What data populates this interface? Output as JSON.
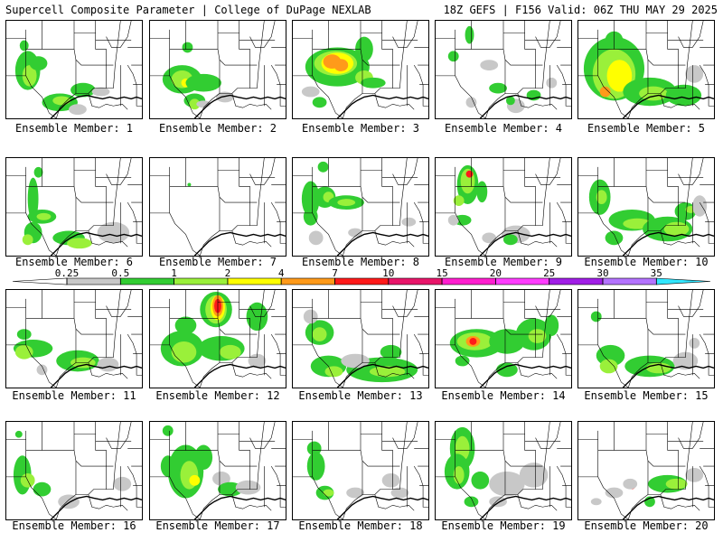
{
  "header": {
    "left": "Supercell Composite Parameter | College of DuPage NEXLAB",
    "right": "18Z GEFS | F156 Valid: 06Z THU MAY 29 2025"
  },
  "colors": {
    "lightgray": "#c8c8c8",
    "green": "#32cd32",
    "lime": "#9af03a",
    "yellow": "#ffff00",
    "orange": "#ff9a1a",
    "red": "#ff1a1a",
    "crimson": "#e8166a",
    "magenta": "#ff1ecf",
    "brightmagenta": "#ff3cff",
    "purple": "#a01ee6",
    "lavender": "#b473ff",
    "cyan": "#32e6ff"
  },
  "colorbar": {
    "ticks": [
      "0.25",
      "0.5",
      "1",
      "2",
      "4",
      "7",
      "10",
      "15",
      "20",
      "25",
      "30",
      "35"
    ],
    "colors": [
      "#c8c8c8",
      "#32cd32",
      "#9af03a",
      "#ffff00",
      "#ff9a1a",
      "#ff1a1a",
      "#e8166a",
      "#ff1ecf",
      "#ff3cff",
      "#a01ee6",
      "#b473ff",
      "#32e6ff"
    ]
  },
  "panels": [
    {
      "label": "Ensemble Member: 1",
      "blobs": [
        [
          24,
          56,
          14,
          22,
          "green"
        ],
        [
          26,
          62,
          8,
          12,
          "lime"
        ],
        [
          36,
          48,
          10,
          8,
          "green"
        ],
        [
          60,
          92,
          20,
          10,
          "green"
        ],
        [
          62,
          90,
          10,
          5,
          "lime"
        ],
        [
          80,
          100,
          10,
          6,
          "lightgray"
        ],
        [
          86,
          78,
          14,
          8,
          "green"
        ],
        [
          106,
          80,
          10,
          5,
          "lightgray"
        ],
        [
          20,
          28,
          5,
          6,
          "green"
        ]
      ]
    },
    {
      "label": "Ensemble Member: 2",
      "blobs": [
        [
          36,
          66,
          22,
          16,
          "green"
        ],
        [
          36,
          66,
          12,
          10,
          "lime"
        ],
        [
          40,
          70,
          5,
          5,
          "yellow"
        ],
        [
          60,
          70,
          20,
          10,
          "green"
        ],
        [
          50,
          90,
          12,
          8,
          "green"
        ],
        [
          50,
          94,
          6,
          6,
          "lime"
        ],
        [
          60,
          94,
          8,
          4,
          "lightgray"
        ],
        [
          84,
          86,
          10,
          6,
          "lightgray"
        ],
        [
          42,
          30,
          6,
          6,
          "green"
        ]
      ]
    },
    {
      "label": "Ensemble Member: 3",
      "blobs": [
        [
          50,
          52,
          36,
          22,
          "green"
        ],
        [
          48,
          48,
          24,
          14,
          "lime"
        ],
        [
          50,
          48,
          18,
          12,
          "yellow"
        ],
        [
          44,
          46,
          10,
          8,
          "orange"
        ],
        [
          54,
          50,
          8,
          7,
          "orange"
        ],
        [
          80,
          32,
          10,
          14,
          "green"
        ],
        [
          80,
          64,
          10,
          8,
          "lime"
        ],
        [
          90,
          70,
          14,
          6,
          "green"
        ],
        [
          20,
          80,
          10,
          6,
          "lightgray"
        ],
        [
          30,
          92,
          8,
          6,
          "green"
        ]
      ]
    },
    {
      "label": "Ensemble Member: 4",
      "blobs": [
        [
          38,
          16,
          5,
          10,
          "green"
        ],
        [
          60,
          50,
          10,
          6,
          "lightgray"
        ],
        [
          70,
          76,
          10,
          6,
          "green"
        ],
        [
          90,
          96,
          10,
          8,
          "lightgray"
        ],
        [
          84,
          90,
          5,
          5,
          "green"
        ],
        [
          110,
          84,
          8,
          6,
          "green"
        ],
        [
          130,
          70,
          6,
          6,
          "lightgray"
        ],
        [
          40,
          92,
          6,
          6,
          "lightgray"
        ],
        [
          20,
          40,
          6,
          6,
          "green"
        ]
      ]
    },
    {
      "label": "Ensemble Member: 5",
      "blobs": [
        [
          40,
          54,
          34,
          36,
          "green"
        ],
        [
          40,
          60,
          24,
          28,
          "lime"
        ],
        [
          46,
          62,
          14,
          18,
          "yellow"
        ],
        [
          30,
          80,
          6,
          6,
          "orange"
        ],
        [
          80,
          80,
          30,
          16,
          "green"
        ],
        [
          84,
          82,
          16,
          8,
          "lime"
        ],
        [
          118,
          84,
          20,
          12,
          "green"
        ],
        [
          130,
          60,
          10,
          10,
          "lightgray"
        ],
        [
          40,
          22,
          10,
          10,
          "green"
        ]
      ]
    },
    {
      "label": "Ensemble Member: 6",
      "blobs": [
        [
          30,
          46,
          6,
          24,
          "green"
        ],
        [
          40,
          66,
          16,
          8,
          "green"
        ],
        [
          42,
          66,
          8,
          4,
          "lime"
        ],
        [
          30,
          84,
          10,
          12,
          "green"
        ],
        [
          24,
          92,
          6,
          6,
          "lime"
        ],
        [
          70,
          90,
          18,
          8,
          "green"
        ],
        [
          82,
          96,
          14,
          6,
          "lime"
        ],
        [
          120,
          84,
          18,
          12,
          "lightgray"
        ],
        [
          36,
          16,
          5,
          6,
          "green"
        ]
      ]
    },
    {
      "label": "Ensemble Member: 7",
      "blobs": [
        [
          44,
          30,
          2,
          2,
          "green"
        ]
      ]
    },
    {
      "label": "Ensemble Member: 8",
      "blobs": [
        [
          20,
          46,
          10,
          20,
          "green"
        ],
        [
          36,
          44,
          12,
          12,
          "green"
        ],
        [
          40,
          44,
          6,
          6,
          "lime"
        ],
        [
          60,
          50,
          20,
          8,
          "green"
        ],
        [
          60,
          50,
          10,
          4,
          "lime"
        ],
        [
          26,
          90,
          8,
          8,
          "lightgray"
        ],
        [
          20,
          66,
          8,
          10,
          "green"
        ],
        [
          70,
          84,
          8,
          5,
          "lightgray"
        ],
        [
          130,
          72,
          8,
          5,
          "lightgray"
        ],
        [
          34,
          10,
          6,
          6,
          "green"
        ]
      ]
    },
    {
      "label": "Ensemble Member: 9",
      "blobs": [
        [
          36,
          30,
          12,
          22,
          "green"
        ],
        [
          36,
          26,
          8,
          14,
          "lime"
        ],
        [
          38,
          18,
          4,
          4,
          "red"
        ],
        [
          52,
          38,
          6,
          12,
          "green"
        ],
        [
          26,
          48,
          6,
          6,
          "lime"
        ],
        [
          30,
          70,
          10,
          6,
          "green"
        ],
        [
          20,
          70,
          6,
          6,
          "lightgray"
        ],
        [
          90,
          86,
          16,
          10,
          "lightgray"
        ],
        [
          84,
          92,
          8,
          6,
          "green"
        ],
        [
          60,
          90,
          8,
          6,
          "lightgray"
        ]
      ]
    },
    {
      "label": "Ensemble Member: 10",
      "blobs": [
        [
          24,
          44,
          12,
          20,
          "green"
        ],
        [
          26,
          44,
          6,
          8,
          "lime"
        ],
        [
          60,
          70,
          26,
          12,
          "green"
        ],
        [
          66,
          74,
          16,
          6,
          "lime"
        ],
        [
          100,
          80,
          28,
          14,
          "green"
        ],
        [
          110,
          80,
          14,
          8,
          "lime"
        ],
        [
          120,
          60,
          12,
          10,
          "green"
        ],
        [
          126,
          58,
          6,
          4,
          "lime"
        ],
        [
          136,
          54,
          8,
          12,
          "lightgray"
        ],
        [
          40,
          90,
          10,
          8,
          "green"
        ]
      ]
    },
    {
      "label": "Ensemble Member: 11",
      "blobs": [
        [
          30,
          66,
          22,
          10,
          "green"
        ],
        [
          20,
          70,
          10,
          8,
          "lime"
        ],
        [
          80,
          80,
          24,
          12,
          "green"
        ],
        [
          86,
          82,
          14,
          6,
          "lime"
        ],
        [
          114,
          84,
          12,
          8,
          "lightgray"
        ],
        [
          40,
          90,
          6,
          6,
          "lightgray"
        ],
        [
          20,
          50,
          8,
          6,
          "green"
        ]
      ]
    },
    {
      "label": "Ensemble Member: 12",
      "blobs": [
        [
          74,
          22,
          18,
          20,
          "green"
        ],
        [
          74,
          22,
          12,
          16,
          "lime"
        ],
        [
          76,
          20,
          8,
          14,
          "yellow"
        ],
        [
          76,
          18,
          6,
          12,
          "orange"
        ],
        [
          76,
          18,
          4,
          8,
          "red"
        ],
        [
          36,
          66,
          24,
          20,
          "green"
        ],
        [
          38,
          70,
          14,
          12,
          "lime"
        ],
        [
          80,
          66,
          26,
          14,
          "green"
        ],
        [
          90,
          70,
          12,
          8,
          "lime"
        ],
        [
          120,
          30,
          12,
          16,
          "green"
        ],
        [
          40,
          40,
          12,
          10,
          "green"
        ],
        [
          120,
          80,
          10,
          8,
          "lightgray"
        ]
      ]
    },
    {
      "label": "Ensemble Member: 13",
      "blobs": [
        [
          30,
          48,
          16,
          14,
          "green"
        ],
        [
          30,
          50,
          8,
          8,
          "lime"
        ],
        [
          40,
          86,
          20,
          12,
          "green"
        ],
        [
          46,
          92,
          10,
          6,
          "lime"
        ],
        [
          100,
          90,
          40,
          14,
          "green"
        ],
        [
          106,
          92,
          20,
          6,
          "lime"
        ],
        [
          70,
          80,
          16,
          8,
          "lightgray"
        ],
        [
          110,
          70,
          12,
          8,
          "green"
        ],
        [
          20,
          30,
          8,
          8,
          "lightgray"
        ]
      ]
    },
    {
      "label": "Ensemble Member: 14",
      "blobs": [
        [
          46,
          60,
          30,
          16,
          "green"
        ],
        [
          44,
          58,
          20,
          10,
          "lime"
        ],
        [
          42,
          58,
          8,
          6,
          "orange"
        ],
        [
          42,
          58,
          4,
          4,
          "red"
        ],
        [
          80,
          58,
          20,
          14,
          "green"
        ],
        [
          110,
          50,
          20,
          18,
          "green"
        ],
        [
          114,
          52,
          10,
          8,
          "lime"
        ],
        [
          130,
          40,
          8,
          12,
          "green"
        ],
        [
          80,
          90,
          12,
          8,
          "green"
        ],
        [
          30,
          80,
          8,
          6,
          "green"
        ]
      ]
    },
    {
      "label": "Ensemble Member: 15",
      "blobs": [
        [
          36,
          74,
          16,
          12,
          "green"
        ],
        [
          34,
          86,
          10,
          8,
          "lime"
        ],
        [
          80,
          86,
          28,
          12,
          "green"
        ],
        [
          90,
          88,
          14,
          6,
          "lime"
        ],
        [
          120,
          80,
          14,
          10,
          "lightgray"
        ],
        [
          20,
          30,
          6,
          6,
          "green"
        ],
        [
          130,
          60,
          6,
          6,
          "lightgray"
        ]
      ]
    },
    {
      "label": "Ensemble Member: 16",
      "blobs": [
        [
          18,
          60,
          10,
          22,
          "green"
        ],
        [
          24,
          66,
          8,
          8,
          "lime"
        ],
        [
          40,
          76,
          10,
          8,
          "green"
        ],
        [
          70,
          90,
          12,
          8,
          "lightgray"
        ],
        [
          130,
          70,
          10,
          8,
          "lightgray"
        ],
        [
          14,
          14,
          4,
          4,
          "green"
        ]
      ]
    },
    {
      "label": "Ensemble Member: 17",
      "blobs": [
        [
          40,
          56,
          20,
          30,
          "green"
        ],
        [
          44,
          60,
          10,
          16,
          "lime"
        ],
        [
          50,
          66,
          6,
          6,
          "yellow"
        ],
        [
          60,
          40,
          10,
          14,
          "green"
        ],
        [
          20,
          50,
          8,
          12,
          "green"
        ],
        [
          80,
          64,
          10,
          8,
          "lightgray"
        ],
        [
          90,
          76,
          14,
          8,
          "green"
        ],
        [
          110,
          74,
          14,
          8,
          "lightgray"
        ],
        [
          20,
          10,
          6,
          6,
          "green"
        ]
      ]
    },
    {
      "label": "Ensemble Member: 18",
      "blobs": [
        [
          26,
          50,
          10,
          16,
          "green"
        ],
        [
          36,
          80,
          10,
          8,
          "green"
        ],
        [
          40,
          80,
          6,
          4,
          "lime"
        ],
        [
          70,
          80,
          10,
          6,
          "lightgray"
        ],
        [
          110,
          66,
          10,
          8,
          "lightgray"
        ],
        [
          120,
          80,
          10,
          6,
          "lightgray"
        ],
        [
          24,
          30,
          8,
          8,
          "green"
        ]
      ]
    },
    {
      "label": "Ensemble Member: 19",
      "blobs": [
        [
          30,
          30,
          14,
          24,
          "green"
        ],
        [
          30,
          30,
          8,
          14,
          "lime"
        ],
        [
          24,
          56,
          14,
          20,
          "green"
        ],
        [
          26,
          60,
          6,
          10,
          "lime"
        ],
        [
          50,
          66,
          10,
          10,
          "green"
        ],
        [
          80,
          70,
          20,
          14,
          "lightgray"
        ],
        [
          110,
          60,
          16,
          14,
          "lightgray"
        ],
        [
          70,
          90,
          10,
          6,
          "lightgray"
        ],
        [
          40,
          90,
          8,
          6,
          "green"
        ]
      ]
    },
    {
      "label": "Ensemble Member: 20",
      "blobs": [
        [
          100,
          70,
          22,
          10,
          "green"
        ],
        [
          110,
          70,
          12,
          6,
          "lime"
        ],
        [
          60,
          72,
          4,
          4,
          "red"
        ],
        [
          58,
          70,
          8,
          6,
          "lightgray"
        ],
        [
          130,
          60,
          10,
          8,
          "lightgray"
        ],
        [
          40,
          80,
          10,
          6,
          "lightgray"
        ],
        [
          20,
          90,
          6,
          4,
          "lightgray"
        ],
        [
          80,
          90,
          6,
          6,
          "green"
        ]
      ]
    }
  ]
}
